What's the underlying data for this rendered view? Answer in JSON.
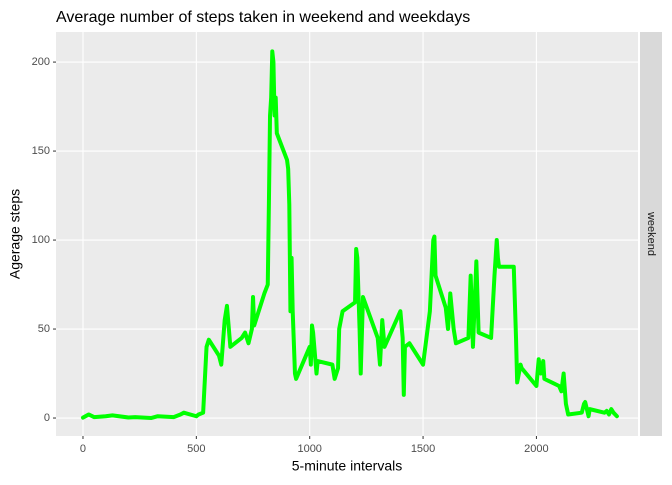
{
  "chart_data": {
    "type": "line",
    "title": "Average number of steps taken in weekend and weekdays",
    "x_label": "5-minute intervals",
    "y_label": "Agerage steps",
    "facet_label": "weekend",
    "color": "#00ff00",
    "grid": true,
    "xlim": [
      -119,
      2448
    ],
    "ylim": [
      -10.1,
      216.9
    ],
    "xticks": [
      0,
      500,
      1000,
      1500,
      2000
    ],
    "yticks": [
      0,
      50,
      100,
      150,
      200
    ],
    "x": [
      0,
      25,
      50,
      100,
      130,
      200,
      230,
      300,
      330,
      400,
      430,
      445,
      500,
      510,
      530,
      545,
      555,
      600,
      610,
      625,
      635,
      650,
      700,
      715,
      730,
      745,
      750,
      755,
      800,
      815,
      820,
      825,
      830,
      835,
      840,
      845,
      850,
      855,
      900,
      905,
      910,
      915,
      920,
      925,
      935,
      940,
      1000,
      1005,
      1010,
      1015,
      1030,
      1035,
      1100,
      1110,
      1125,
      1130,
      1145,
      1200,
      1205,
      1210,
      1220,
      1225,
      1235,
      1300,
      1310,
      1320,
      1330,
      1400,
      1410,
      1415,
      1420,
      1440,
      1500,
      1530,
      1545,
      1550,
      1555,
      1600,
      1610,
      1620,
      1635,
      1645,
      1700,
      1710,
      1720,
      1735,
      1745,
      1800,
      1815,
      1825,
      1830,
      1835,
      1900,
      1910,
      1915,
      1930,
      1935,
      2000,
      2010,
      2020,
      2030,
      2035,
      2100,
      2110,
      2120,
      2130,
      2140,
      2200,
      2210,
      2215,
      2230,
      2235,
      2300,
      2310,
      2320,
      2330,
      2340,
      2355
    ],
    "values": [
      0.2,
      2,
      0.5,
      1,
      1.5,
      0.3,
      0.5,
      0,
      1,
      0.5,
      2,
      3,
      1,
      2,
      3,
      40,
      44,
      35,
      30,
      55,
      63,
      40,
      45,
      48,
      42,
      50,
      68,
      52,
      70,
      75,
      120,
      170,
      180,
      206,
      200,
      170,
      180,
      160,
      145,
      140,
      120,
      60,
      90,
      60,
      25,
      22,
      40,
      30,
      52,
      48,
      25,
      32,
      30,
      22,
      28,
      50,
      60,
      65,
      95,
      90,
      50,
      25,
      68,
      45,
      30,
      55,
      40,
      60,
      45,
      13,
      40,
      42,
      30,
      60,
      100,
      102,
      80,
      62,
      50,
      70,
      50,
      42,
      45,
      80,
      40,
      88,
      48,
      45,
      80,
      100,
      90,
      85,
      85,
      45,
      20,
      30,
      28,
      18,
      33,
      25,
      32,
      22,
      18,
      15,
      25,
      8,
      2,
      3,
      8,
      9,
      1,
      5,
      3,
      4,
      2,
      5,
      3,
      1
    ]
  }
}
